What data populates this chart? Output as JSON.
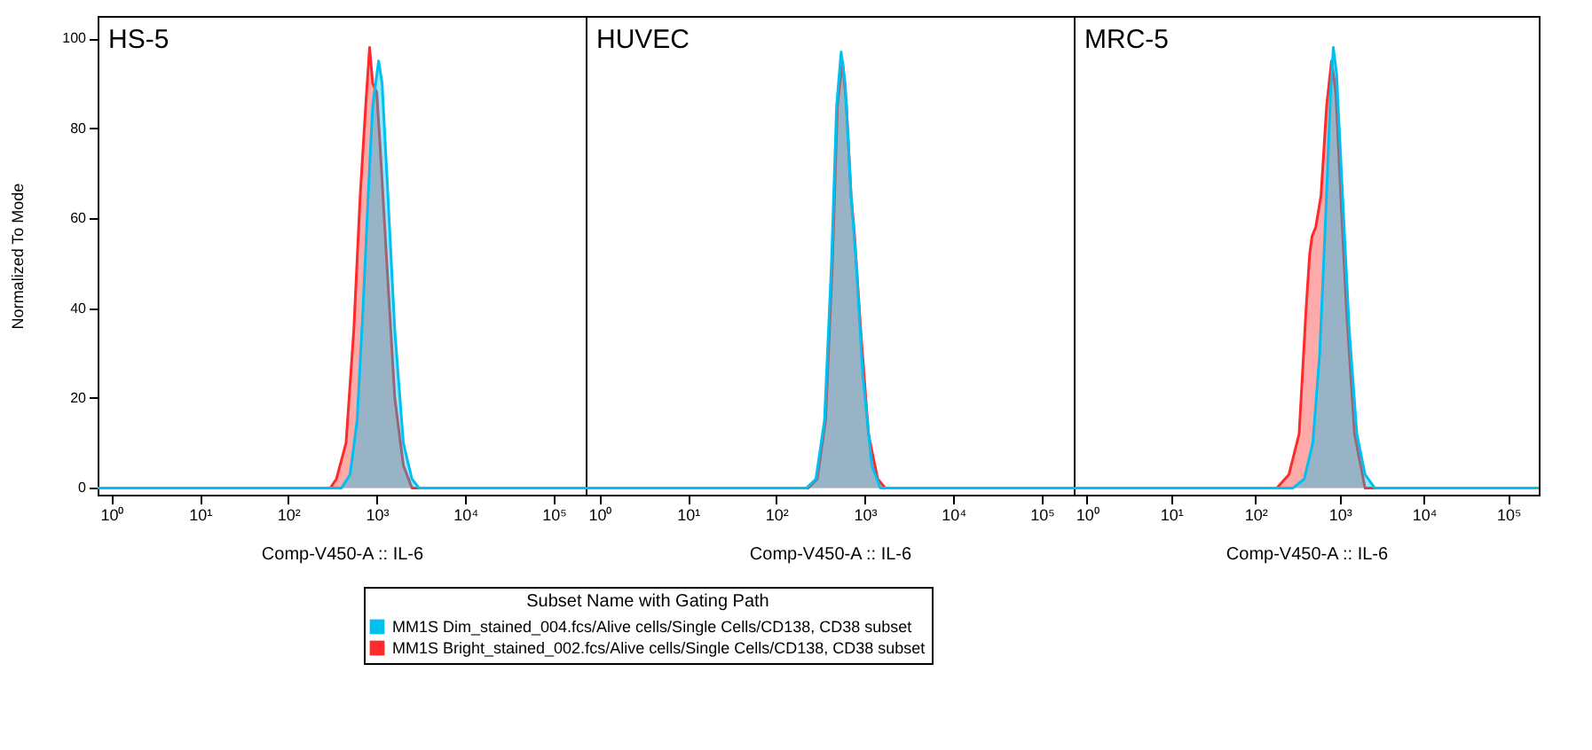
{
  "chart_data": [
    {
      "type": "area",
      "title": "HS-5",
      "xlabel": "Comp-V450-A :: IL-6",
      "ylabel": "Normalized To Mode",
      "log": "x",
      "xlim": [
        0.7,
        230000
      ],
      "ylim": [
        -1.5,
        105
      ],
      "xticks": [
        {
          "value": 1,
          "label": "10⁰"
        },
        {
          "value": 10,
          "label": "10¹"
        },
        {
          "value": 100,
          "label": "10²"
        },
        {
          "value": 1000,
          "label": "10³"
        },
        {
          "value": 10000,
          "label": "10⁴"
        },
        {
          "value": 100000,
          "label": "10⁵"
        }
      ],
      "yticks": [
        0,
        20,
        40,
        60,
        80,
        100
      ],
      "legend": "bottom",
      "legend_title": "Subset Name with Gating Path",
      "grid": false,
      "series": [
        {
          "name": "MM1S Dim_stained_004.fcs/Alive cells/Single Cells/CD138, CD38 subset",
          "color": "#00c0f0",
          "x": [
            0.7,
            400,
            500,
            600,
            700,
            800,
            900,
            1050,
            1150,
            1300,
            1600,
            2000,
            2500,
            3000,
            230000
          ],
          "values": [
            0,
            0,
            3,
            15,
            40,
            65,
            85,
            95,
            90,
            70,
            35,
            10,
            2,
            0,
            0
          ]
        },
        {
          "name": "MM1S Bright_stained_002.fcs/Alive cells/Single Cells/CD138, CD38 subset",
          "color": "#ff2a2a",
          "x": [
            0.7,
            300,
            350,
            450,
            550,
            650,
            750,
            830,
            900,
            1000,
            1100,
            1300,
            1600,
            2000,
            2500,
            230000
          ],
          "values": [
            0,
            0,
            2,
            10,
            35,
            65,
            85,
            98,
            90,
            88,
            75,
            50,
            20,
            5,
            0,
            0
          ]
        }
      ]
    },
    {
      "type": "area",
      "title": "HUVEC",
      "xlabel": "Comp-V450-A :: IL-6",
      "log": "x",
      "xlim": [
        0.7,
        230000
      ],
      "ylim": [
        -1.5,
        105
      ],
      "xticks": [
        {
          "value": 1,
          "label": "10⁰"
        },
        {
          "value": 10,
          "label": "10¹"
        },
        {
          "value": 100,
          "label": "10²"
        },
        {
          "value": 1000,
          "label": "10³"
        },
        {
          "value": 10000,
          "label": "10⁴"
        },
        {
          "value": 100000,
          "label": "10⁵"
        }
      ],
      "yticks": [
        0,
        20,
        40,
        60,
        80,
        100
      ],
      "tick_labels": "x",
      "grid": false,
      "series": [
        {
          "color": "#00c0f0",
          "x": [
            0.7,
            220,
            280,
            350,
            420,
            480,
            540,
            600,
            700,
            800,
            950,
            1200,
            1500,
            230000
          ],
          "values": [
            0,
            0,
            2,
            15,
            50,
            85,
            97,
            90,
            65,
            50,
            25,
            5,
            0,
            0
          ]
        },
        {
          "color": "#ff2a2a",
          "x": [
            0.7,
            230,
            290,
            360,
            430,
            490,
            560,
            620,
            700,
            760,
            900,
            1100,
            1400,
            1700,
            230000
          ],
          "values": [
            0,
            0,
            2,
            15,
            50,
            85,
            95,
            85,
            65,
            57,
            35,
            12,
            2,
            0,
            0
          ]
        }
      ]
    },
    {
      "type": "area",
      "title": "MRC-5",
      "xlabel": "Comp-V450-A :: IL-6",
      "log": "x",
      "xlim": [
        0.7,
        230000
      ],
      "ylim": [
        -1.5,
        105
      ],
      "xticks": [
        {
          "value": 1,
          "label": "10⁰"
        },
        {
          "value": 10,
          "label": "10¹"
        },
        {
          "value": 100,
          "label": "10²"
        },
        {
          "value": 1000,
          "label": "10³"
        },
        {
          "value": 10000,
          "label": "10⁴"
        },
        {
          "value": 100000,
          "label": "10⁵"
        }
      ],
      "yticks": [
        0,
        20,
        40,
        60,
        80,
        100
      ],
      "tick_labels": "x",
      "grid": false,
      "series": [
        {
          "color": "#00c0f0",
          "x": [
            0.7,
            280,
            380,
            480,
            580,
            680,
            780,
            840,
            920,
            1050,
            1300,
            1600,
            2000,
            2600,
            230000
          ],
          "values": [
            0,
            0,
            2,
            10,
            30,
            60,
            88,
            98,
            92,
            70,
            35,
            12,
            3,
            0,
            0
          ]
        },
        {
          "color": "#ff2a2a",
          "x": [
            0.7,
            180,
            250,
            330,
            400,
            440,
            470,
            520,
            600,
            700,
            800,
            900,
            1000,
            1200,
            1500,
            2000,
            230000
          ],
          "values": [
            0,
            0,
            3,
            12,
            40,
            52,
            56,
            58,
            65,
            85,
            95,
            88,
            70,
            40,
            12,
            0,
            0
          ]
        }
      ]
    }
  ]
}
